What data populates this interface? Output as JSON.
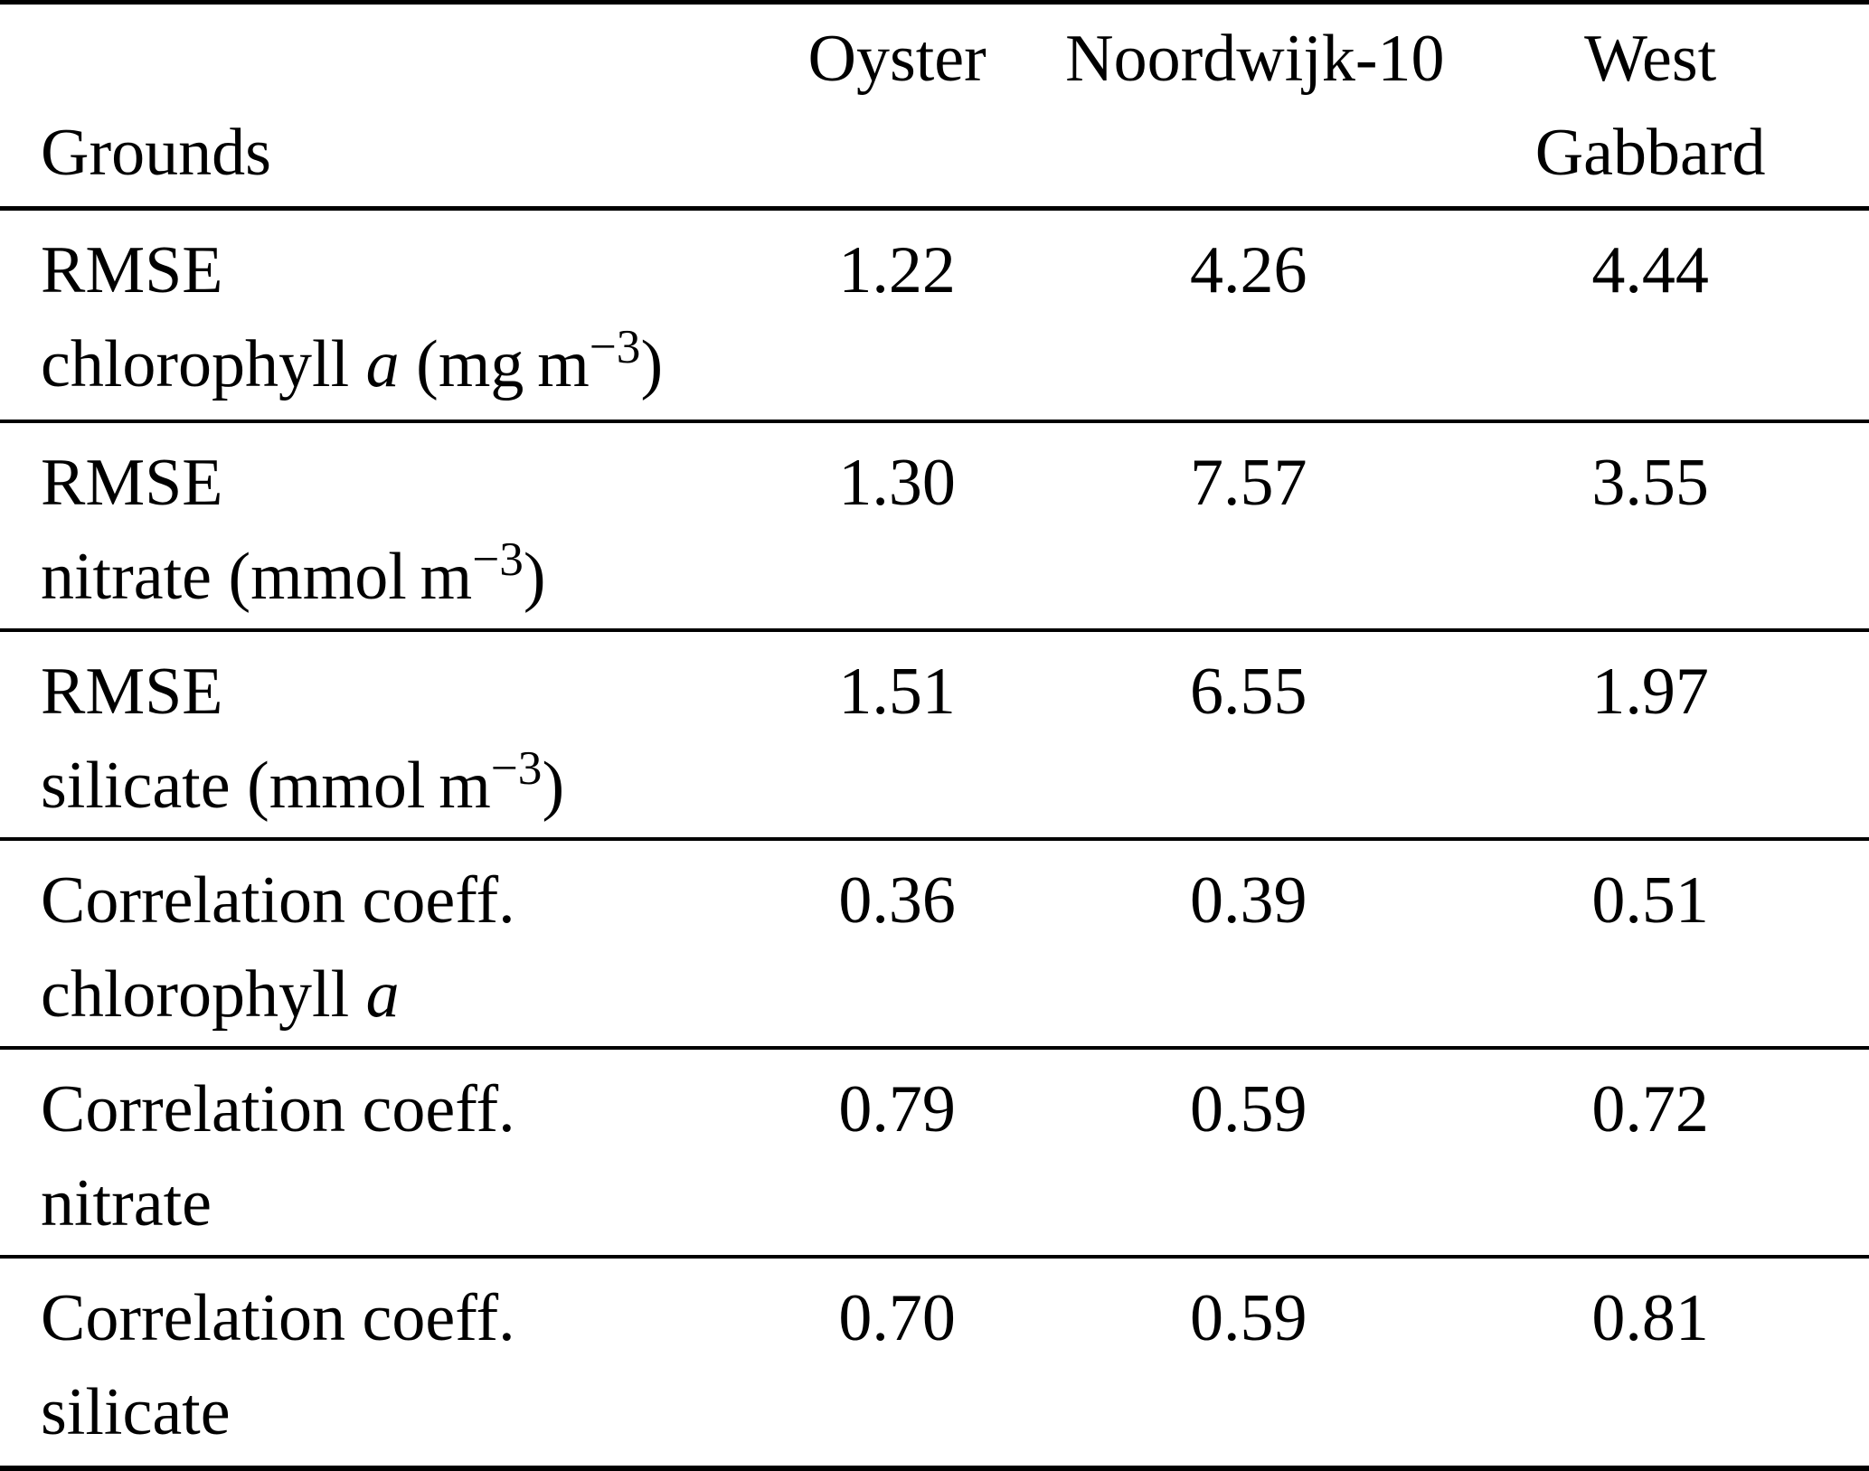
{
  "page": {
    "background_color": "#ffffff",
    "text_color": "#000000",
    "rule_color": "#000000"
  },
  "table": {
    "corner_label": "Grounds",
    "column_headers": [
      {
        "lines": [
          "Oyster"
        ]
      },
      {
        "lines": [
          "Noordwijk-10"
        ]
      },
      {
        "lines": [
          "West",
          "Gabbard"
        ]
      }
    ],
    "rows": [
      {
        "metric": "RMSE",
        "variable": [
          {
            "text": "chlorophyll "
          },
          {
            "text": "a",
            "italic": true
          },
          {
            "text": " (mg m"
          },
          {
            "text": "−3",
            "sup": true
          },
          {
            "text": ")"
          }
        ],
        "values": [
          "1.22",
          "4.26",
          "4.44"
        ]
      },
      {
        "metric": "RMSE",
        "variable": [
          {
            "text": "nitrate (mmol m"
          },
          {
            "text": "−3",
            "sup": true
          },
          {
            "text": ")"
          }
        ],
        "values": [
          "1.30",
          "7.57",
          "3.55"
        ]
      },
      {
        "metric": "RMSE",
        "variable": [
          {
            "text": "silicate (mmol m"
          },
          {
            "text": "−3",
            "sup": true
          },
          {
            "text": ")"
          }
        ],
        "values": [
          "1.51",
          "6.55",
          "1.97"
        ]
      },
      {
        "metric": "Correlation coeff.",
        "variable": [
          {
            "text": "chlorophyll "
          },
          {
            "text": "a",
            "italic": true
          }
        ],
        "values": [
          "0.36",
          "0.39",
          "0.51"
        ]
      },
      {
        "metric": "Correlation coeff.",
        "variable": [
          {
            "text": "nitrate"
          }
        ],
        "values": [
          "0.79",
          "0.59",
          "0.72"
        ]
      },
      {
        "metric": "Correlation coeff.",
        "variable": [
          {
            "text": "silicate"
          }
        ],
        "values": [
          "0.70",
          "0.59",
          "0.81"
        ]
      }
    ]
  }
}
